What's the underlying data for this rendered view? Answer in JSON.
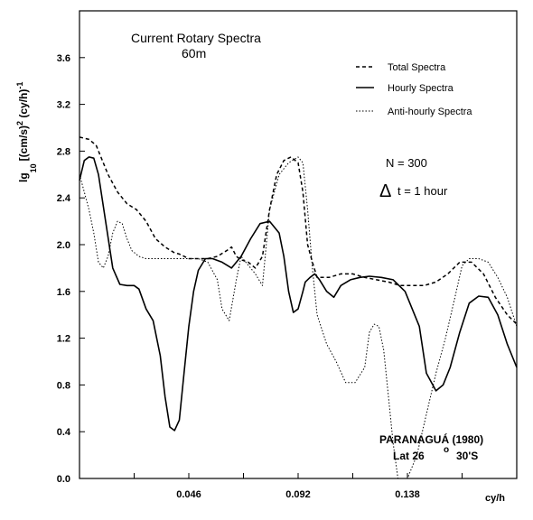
{
  "chart_data": {
    "type": "line",
    "title": "Current Rotary Spectra",
    "subtitle": "60m",
    "xlabel": "cy/h",
    "ylabel": "lg10 [(cm/s)2 (cy/h)-1]",
    "ylabel_parts": {
      "lg": "lg",
      "sub": "10",
      "main": "[(cm/s)",
      "sup": "2",
      "rest": " (cy/h)",
      "sup2": "-1"
    },
    "xlim": [
      0.0,
      0.184
    ],
    "ylim": [
      0.0,
      4.0
    ],
    "x_ticks": [
      0.046,
      0.092,
      0.138
    ],
    "x_tick_labels": [
      "0.046",
      "0.092",
      "0.138"
    ],
    "y_ticks": [
      0.0,
      0.4,
      0.8,
      1.2,
      1.6,
      2.0,
      2.4,
      2.8,
      3.2,
      3.6
    ],
    "y_tick_labels": [
      "0.0",
      "0.4",
      "0.8",
      "1.2",
      "1.6",
      "2.0",
      "2.4",
      "2.8",
      "3.2",
      "3.6"
    ],
    "grid": false,
    "legend_position": "top-right",
    "series": [
      {
        "name": "Total Spectra",
        "style": "dashed",
        "x": [
          0.0,
          0.004,
          0.007,
          0.009,
          0.012,
          0.016,
          0.02,
          0.024,
          0.028,
          0.032,
          0.036,
          0.04,
          0.042,
          0.046,
          0.05,
          0.054,
          0.058,
          0.062,
          0.064,
          0.066,
          0.068,
          0.071,
          0.074,
          0.077,
          0.08,
          0.083,
          0.086,
          0.089,
          0.092,
          0.094,
          0.096,
          0.098,
          0.1,
          0.105,
          0.11,
          0.115,
          0.12,
          0.125,
          0.13,
          0.135,
          0.14,
          0.145,
          0.15,
          0.155,
          0.16,
          0.165,
          0.17,
          0.175,
          0.18,
          0.184
        ],
        "values": [
          2.92,
          2.9,
          2.85,
          2.75,
          2.6,
          2.45,
          2.35,
          2.3,
          2.2,
          2.05,
          1.98,
          1.93,
          1.92,
          1.88,
          1.88,
          1.88,
          1.9,
          1.95,
          1.98,
          1.9,
          1.87,
          1.85,
          1.8,
          1.9,
          2.3,
          2.6,
          2.72,
          2.75,
          2.7,
          2.45,
          2.0,
          1.85,
          1.72,
          1.72,
          1.75,
          1.75,
          1.72,
          1.7,
          1.68,
          1.65,
          1.65,
          1.65,
          1.68,
          1.75,
          1.85,
          1.85,
          1.75,
          1.55,
          1.4,
          1.32
        ]
      },
      {
        "name": "Hourly Spectra",
        "style": "solid",
        "x": [
          0.0,
          0.002,
          0.004,
          0.006,
          0.008,
          0.011,
          0.014,
          0.017,
          0.02,
          0.023,
          0.025,
          0.028,
          0.031,
          0.034,
          0.036,
          0.038,
          0.04,
          0.042,
          0.044,
          0.046,
          0.048,
          0.05,
          0.053,
          0.056,
          0.06,
          0.064,
          0.068,
          0.072,
          0.076,
          0.08,
          0.084,
          0.086,
          0.088,
          0.09,
          0.092,
          0.094,
          0.095,
          0.097,
          0.099,
          0.101,
          0.104,
          0.107,
          0.11,
          0.114,
          0.118,
          0.122,
          0.127,
          0.132,
          0.137,
          0.14,
          0.143,
          0.146,
          0.15,
          0.153,
          0.156,
          0.16,
          0.164,
          0.168,
          0.172,
          0.176,
          0.18,
          0.184
        ],
        "values": [
          2.55,
          2.72,
          2.75,
          2.74,
          2.6,
          2.2,
          1.8,
          1.66,
          1.65,
          1.65,
          1.62,
          1.45,
          1.35,
          1.05,
          0.7,
          0.44,
          0.41,
          0.5,
          0.9,
          1.3,
          1.6,
          1.78,
          1.88,
          1.88,
          1.85,
          1.8,
          1.9,
          2.05,
          2.18,
          2.2,
          2.1,
          1.9,
          1.6,
          1.42,
          1.45,
          1.6,
          1.68,
          1.72,
          1.75,
          1.7,
          1.6,
          1.55,
          1.65,
          1.7,
          1.72,
          1.73,
          1.72,
          1.7,
          1.6,
          1.45,
          1.3,
          0.9,
          0.75,
          0.8,
          0.95,
          1.25,
          1.5,
          1.56,
          1.55,
          1.4,
          1.15,
          0.95
        ]
      },
      {
        "name": "Anti-hourly Spectra",
        "style": "dotted",
        "x": [
          0.0,
          0.002,
          0.004,
          0.006,
          0.008,
          0.01,
          0.012,
          0.014,
          0.016,
          0.018,
          0.02,
          0.022,
          0.025,
          0.028,
          0.031,
          0.034,
          0.038,
          0.042,
          0.046,
          0.05,
          0.054,
          0.058,
          0.06,
          0.063,
          0.066,
          0.068,
          0.07,
          0.072,
          0.074,
          0.077,
          0.08,
          0.084,
          0.088,
          0.092,
          0.094,
          0.096,
          0.098,
          0.1,
          0.104,
          0.108,
          0.112,
          0.116,
          0.12,
          0.122,
          0.124,
          0.126,
          0.128,
          0.13,
          0.132,
          0.134,
          0.136,
          0.138,
          0.142,
          0.146,
          0.15,
          0.154,
          0.158,
          0.161,
          0.164,
          0.168,
          0.172,
          0.176,
          0.18,
          0.184
        ],
        "values": [
          2.6,
          2.45,
          2.3,
          2.1,
          1.85,
          1.8,
          1.9,
          2.1,
          2.2,
          2.18,
          2.05,
          1.95,
          1.9,
          1.88,
          1.88,
          1.88,
          1.88,
          1.88,
          1.88,
          1.88,
          1.85,
          1.7,
          1.45,
          1.35,
          1.7,
          1.9,
          1.85,
          1.8,
          1.75,
          1.65,
          2.3,
          2.6,
          2.7,
          2.75,
          2.7,
          2.3,
          1.8,
          1.4,
          1.15,
          1.0,
          0.82,
          0.82,
          0.95,
          1.25,
          1.32,
          1.3,
          1.1,
          0.7,
          0.3,
          0.0,
          0.0,
          0.0,
          0.2,
          0.55,
          0.9,
          1.2,
          1.55,
          1.82,
          1.88,
          1.88,
          1.85,
          1.72,
          1.55,
          1.3
        ]
      }
    ],
    "annotations": {
      "n_text": "N = 300",
      "delta_symbol": "Δ",
      "dt_text": "t = 1 hour",
      "location": "PARANAGUÁ  (1980)",
      "lat_prefix": "Lat  26",
      "lat_degree": "o",
      "lat_suffix": "30'S"
    }
  }
}
